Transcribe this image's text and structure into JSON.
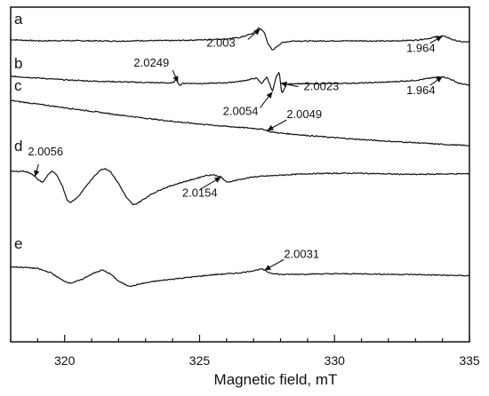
{
  "chart_data": {
    "type": "line",
    "title": "",
    "xlabel": "Magnetic field, mT",
    "ylabel": "",
    "xlim": [
      318,
      335
    ],
    "x_ticks": [
      320,
      325,
      330,
      335
    ],
    "grid": false,
    "legend": "none",
    "series": [
      {
        "name": "a",
        "x": [
          318,
          319,
          320,
          321,
          322,
          323,
          324,
          325,
          326,
          326.5,
          327,
          327.2,
          327.4,
          327.55,
          327.7,
          327.9,
          328.1,
          328.5,
          329,
          330,
          331,
          332,
          333,
          333.5,
          333.8,
          334.0,
          334.2,
          334.4,
          334.7,
          335
        ],
        "y": [
          0.5,
          0.0,
          0.1,
          0.0,
          -0.1,
          0.1,
          0.1,
          0.4,
          0.8,
          1.4,
          3.2,
          5.5,
          3.5,
          -1.5,
          -4.0,
          -2.0,
          -0.6,
          0.0,
          -0.1,
          0.0,
          0.0,
          -0.1,
          0.3,
          1.0,
          1.8,
          2.0,
          1.4,
          0.4,
          -0.4,
          -0.5
        ]
      },
      {
        "name": "b",
        "x": [
          318,
          319,
          320,
          321,
          322,
          323,
          324,
          324.15,
          324.25,
          324.4,
          325,
          325.5,
          326,
          326.5,
          326.8,
          327.1,
          327.3,
          327.5,
          327.7,
          327.85,
          327.95,
          328.05,
          328.2,
          328.5,
          329,
          330,
          331,
          332,
          333,
          333.6,
          334.0,
          334.3,
          334.6,
          335
        ],
        "y": [
          3.0,
          2.3,
          1.5,
          1.0,
          0.7,
          0.4,
          0.2,
          1.6,
          -0.8,
          0.1,
          0.0,
          0.1,
          0.3,
          0.9,
          1.5,
          2.3,
          0.0,
          2.8,
          -3.5,
          3.0,
          4.8,
          -4.5,
          -0.5,
          0.0,
          -0.2,
          0.0,
          0.2,
          0.6,
          1.3,
          2.3,
          2.9,
          1.8,
          0.1,
          -0.8
        ]
      },
      {
        "name": "c",
        "x": [
          318,
          319,
          320,
          321,
          322,
          323,
          324,
          325,
          326,
          327,
          327.4,
          327.6,
          328,
          329,
          330,
          331,
          332,
          333,
          334,
          335
        ],
        "y": [
          4.0,
          2.5,
          1.0,
          -0.5,
          -2.0,
          -3.4,
          -4.7,
          -5.8,
          -6.8,
          -7.6,
          -8.1,
          -9.0,
          -9.6,
          -10.6,
          -11.5,
          -12.3,
          -13.0,
          -13.6,
          -14.3,
          -14.8
        ]
      },
      {
        "name": "d",
        "x": [
          318,
          318.5,
          318.8,
          319.0,
          319.2,
          319.4,
          319.55,
          319.7,
          319.9,
          320.1,
          320.2,
          320.5,
          320.8,
          321.1,
          321.3,
          321.5,
          321.7,
          322.0,
          322.3,
          322.55,
          322.8,
          323.2,
          323.6,
          324.0,
          324.4,
          324.8,
          325.2,
          325.5,
          325.8,
          326.0,
          326.4,
          327,
          328,
          329,
          330,
          331,
          332,
          333,
          334,
          335
        ],
        "y": [
          2.5,
          2.7,
          1.5,
          -0.8,
          -2.0,
          1.5,
          2.6,
          1.0,
          -3.0,
          -9.5,
          -10.5,
          -8.0,
          -3.5,
          0.5,
          3.0,
          3.8,
          2.5,
          -2.5,
          -8.5,
          -11.5,
          -10.0,
          -7.0,
          -4.8,
          -3.2,
          -1.8,
          -0.6,
          0.8,
          1.2,
          0.2,
          -2.0,
          -1.0,
          0.3,
          1.0,
          1.6,
          1.8,
          1.8,
          1.5,
          1.3,
          1.5,
          1.6
        ]
      },
      {
        "name": "e",
        "x": [
          318,
          318.5,
          319,
          319.5,
          319.9,
          320.2,
          320.6,
          321.0,
          321.4,
          321.7,
          322.0,
          322.3,
          322.5,
          322.8,
          323.3,
          324,
          324.5,
          325,
          325.5,
          326,
          326.5,
          327,
          327.3,
          327.6,
          328,
          329,
          330,
          331,
          332,
          333,
          334,
          335
        ],
        "y": [
          3.5,
          3.3,
          2.8,
          1.0,
          -2.0,
          -3.3,
          -2.0,
          0.5,
          2.2,
          0.5,
          -2.5,
          -4.2,
          -4.5,
          -3.6,
          -2.6,
          -1.6,
          -1.0,
          -0.4,
          0.2,
          0.6,
          1.0,
          1.9,
          2.6,
          1.0,
          0.3,
          0.5,
          0.6,
          0.6,
          0.4,
          0.3,
          0.0,
          -0.2
        ]
      }
    ],
    "annotations": [
      {
        "text": "2.003",
        "series": "a",
        "target_x": 327.25
      },
      {
        "text": "1.964",
        "series": "a",
        "target_x": 334.0
      },
      {
        "text": "2.0249",
        "series": "b",
        "target_x": 324.2
      },
      {
        "text": "2.0054",
        "series": "b",
        "target_x": 327.7
      },
      {
        "text": "2.0023",
        "series": "b",
        "target_x": 328.0
      },
      {
        "text": "1.964",
        "series": "b",
        "target_x": 334.0
      },
      {
        "text": "2.0049",
        "series": "c",
        "target_x": 327.5
      },
      {
        "text": "2.0056",
        "series": "d",
        "target_x": 318.9
      },
      {
        "text": "2.0154",
        "series": "d",
        "target_x": 325.8
      },
      {
        "text": "2.0031",
        "series": "e",
        "target_x": 327.4
      }
    ]
  }
}
